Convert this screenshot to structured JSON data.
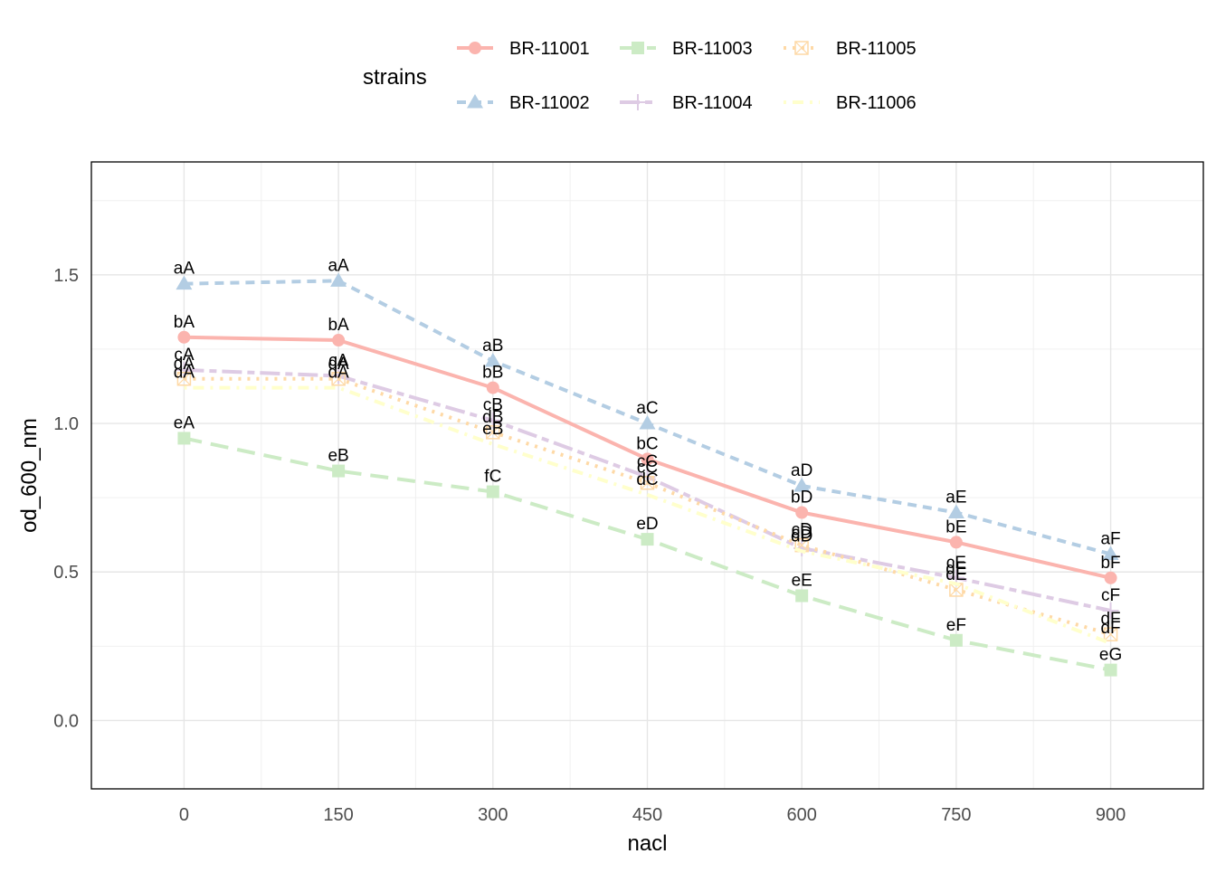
{
  "chart_data": {
    "type": "line",
    "x": [
      0,
      150,
      300,
      450,
      600,
      750,
      900
    ],
    "xlabel": "nacl",
    "ylabel": "od_600_nm",
    "xlim": [
      -90,
      990
    ],
    "ylim": [
      -0.23,
      1.88
    ],
    "xticks": [
      "0",
      "150",
      "300",
      "450",
      "600",
      "750",
      "900"
    ],
    "yticks": [
      "0.0",
      "0.5",
      "1.0",
      "1.5"
    ],
    "grid": true,
    "legend": {
      "title": "strains",
      "position": "top"
    },
    "series": [
      {
        "name": "BR-11001",
        "color": "#FBB4AE",
        "marker": "circle",
        "dash": "solid",
        "values": [
          1.29,
          1.28,
          1.12,
          0.88,
          0.7,
          0.6,
          0.48
        ],
        "labels": [
          "bA",
          "bA",
          "bB",
          "bC",
          "bD",
          "bE",
          "bF"
        ]
      },
      {
        "name": "BR-11002",
        "color": "#B3CDE3",
        "marker": "triangle",
        "dash": "short-dash",
        "values": [
          1.47,
          1.48,
          1.21,
          1.0,
          0.79,
          0.7,
          0.56
        ],
        "labels": [
          "aA",
          "aA",
          "aB",
          "aC",
          "aD",
          "aE",
          "aF"
        ]
      },
      {
        "name": "BR-11003",
        "color": "#CCEBC5",
        "marker": "square",
        "dash": "long-dash",
        "values": [
          0.95,
          0.84,
          0.77,
          0.61,
          0.42,
          0.27,
          0.17
        ],
        "labels": [
          "eA",
          "eB",
          "fC",
          "eD",
          "eE",
          "eF",
          "eG"
        ]
      },
      {
        "name": "BR-11004",
        "color": "#DECBE4",
        "marker": "plus",
        "dash": "two-dash",
        "values": [
          1.18,
          1.16,
          1.01,
          0.82,
          0.58,
          0.48,
          0.37
        ],
        "labels": [
          "cA",
          "cA",
          "cB",
          "cC",
          "cD",
          "cE",
          "cF"
        ]
      },
      {
        "name": "BR-11005",
        "color": "#FED9A6",
        "marker": "square-cross",
        "dash": "dotted",
        "values": [
          1.15,
          1.15,
          0.97,
          0.8,
          0.59,
          0.44,
          0.29
        ],
        "labels": [
          "dA",
          "dA",
          "dB",
          "cC",
          "cD",
          "dE",
          "dF"
        ]
      },
      {
        "name": "BR-11006",
        "color": "#FFFFCC",
        "marker": "none",
        "dash": "dot-dash",
        "values": [
          1.12,
          1.12,
          0.93,
          0.76,
          0.57,
          0.46,
          0.26
        ],
        "labels": [
          "dA",
          "dA",
          "eB",
          "dC",
          "dD",
          "dE",
          "dF"
        ]
      }
    ]
  }
}
